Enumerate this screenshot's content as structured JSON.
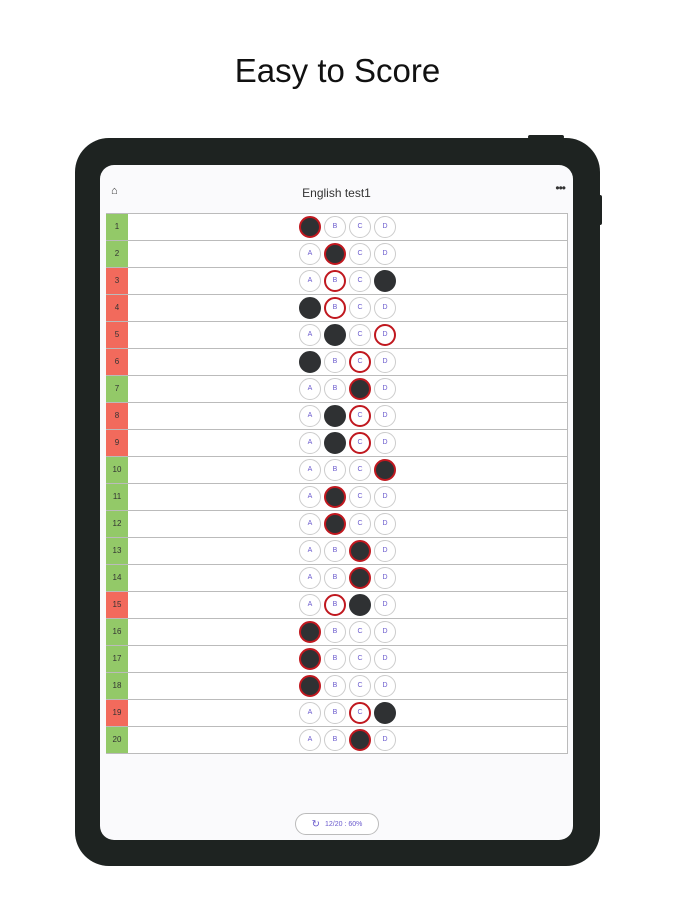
{
  "headline": "Easy to Score",
  "app": {
    "title": "English test1",
    "home_icon": "home-icon",
    "more_icon": "more-icon",
    "more_label": "•••",
    "home_label": "⌂"
  },
  "choices": [
    "A",
    "B",
    "C",
    "D"
  ],
  "colors": {
    "correct_row": "#93c968",
    "wrong_row": "#f26a5c",
    "answer_ring": "#c0181f",
    "filled": "#2f3133"
  },
  "rows": [
    {
      "n": "1",
      "selected": "A",
      "answer": "A",
      "correct": true
    },
    {
      "n": "2",
      "selected": "B",
      "answer": "B",
      "correct": true
    },
    {
      "n": "3",
      "selected": "D",
      "answer": "B",
      "correct": false
    },
    {
      "n": "4",
      "selected": "A",
      "answer": "B",
      "correct": false
    },
    {
      "n": "5",
      "selected": "B",
      "answer": "D",
      "correct": false
    },
    {
      "n": "6",
      "selected": "A",
      "answer": "C",
      "correct": false
    },
    {
      "n": "7",
      "selected": "C",
      "answer": "C",
      "correct": true
    },
    {
      "n": "8",
      "selected": "B",
      "answer": "C",
      "correct": false
    },
    {
      "n": "9",
      "selected": "B",
      "answer": "C",
      "correct": false
    },
    {
      "n": "10",
      "selected": "D",
      "answer": "D",
      "correct": true
    },
    {
      "n": "11",
      "selected": "B",
      "answer": "B",
      "correct": true
    },
    {
      "n": "12",
      "selected": "B",
      "answer": "B",
      "correct": true
    },
    {
      "n": "13",
      "selected": "C",
      "answer": "C",
      "correct": true
    },
    {
      "n": "14",
      "selected": "C",
      "answer": "C",
      "correct": true
    },
    {
      "n": "15",
      "selected": "C",
      "answer": "B",
      "correct": false
    },
    {
      "n": "16",
      "selected": "A",
      "answer": "A",
      "correct": true
    },
    {
      "n": "17",
      "selected": "A",
      "answer": "A",
      "correct": true
    },
    {
      "n": "18",
      "selected": "A",
      "answer": "A",
      "correct": true
    },
    {
      "n": "19",
      "selected": "D",
      "answer": "C",
      "correct": false
    },
    {
      "n": "20",
      "selected": "C",
      "answer": "C",
      "correct": true
    }
  ],
  "score": {
    "label": "12/20 : 60%",
    "icon": "refresh-icon",
    "icon_glyph": "↻"
  }
}
